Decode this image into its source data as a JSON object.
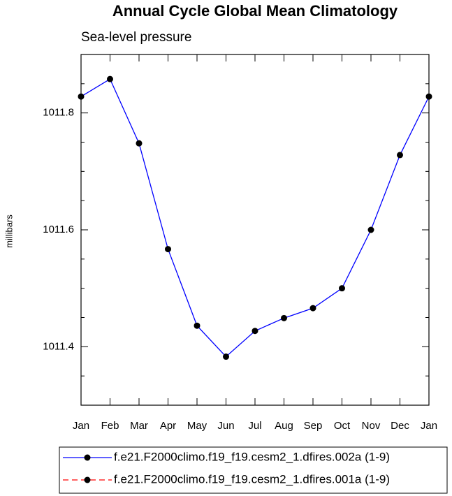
{
  "chart_data": {
    "type": "line",
    "title": "Annual Cycle Global Mean Climatology",
    "subtitle": "Sea-level pressure",
    "y_label": "millibars",
    "categories": [
      "Jan",
      "Feb",
      "Mar",
      "Apr",
      "May",
      "Jun",
      "Jul",
      "Aug",
      "Sep",
      "Oct",
      "Nov",
      "Dec",
      "Jan"
    ],
    "series": [
      {
        "name": "f.e21.F2000climo.f19_f19.cesm2_1.dfires.002a (1-9)",
        "color": "#0000ff",
        "dash": false,
        "values": [
          1011.828,
          1011.858,
          1011.748,
          1011.567,
          1011.436,
          1011.383,
          1011.427,
          1011.449,
          1011.466,
          1011.5,
          1011.6,
          1011.728,
          1011.828
        ]
      },
      {
        "name": "f.e21.F2000climo.f19_f19.cesm2_1.dfires.001a (1-9)",
        "color": "#ff0000",
        "dash": true,
        "values": [
          null,
          null,
          null,
          null,
          null,
          null,
          null,
          null,
          null,
          null,
          null,
          null,
          null
        ]
      }
    ],
    "ylim": [
      1011.3,
      1011.9
    ],
    "yticks": [
      1011.4,
      1011.6,
      1011.8
    ],
    "yminorticks": [
      1011.35,
      1011.45,
      1011.5,
      1011.55,
      1011.65,
      1011.7,
      1011.75,
      1011.85,
      1011.9
    ],
    "grid": false
  }
}
